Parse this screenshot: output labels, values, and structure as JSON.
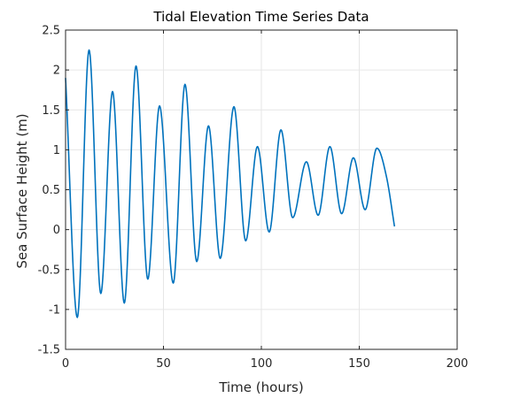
{
  "chart_data": {
    "type": "line",
    "title": "Tidal Elevation Time Series Data",
    "xlabel": "Time (hours)",
    "ylabel": "Sea Surface Height (m)",
    "xlim": [
      0,
      200
    ],
    "ylim": [
      -1.5,
      2.5
    ],
    "xticks": [
      0,
      50,
      100,
      150,
      200
    ],
    "xtick_labels": [
      "0",
      "50",
      "100",
      "150",
      "200"
    ],
    "yticks": [
      -1.5,
      -1,
      -0.5,
      0,
      0.5,
      1,
      1.5,
      2,
      2.5
    ],
    "ytick_labels": [
      "-1.5",
      "-1",
      "-0.5",
      "0",
      "0.5",
      "1",
      "1.5",
      "2",
      "2.5"
    ],
    "grid": true,
    "series": [
      {
        "color": "#0072bd",
        "x": [
          0,
          6,
          12,
          18,
          24,
          30,
          36,
          42,
          48,
          55,
          61,
          67,
          73,
          79,
          86,
          92,
          98,
          104,
          110,
          116,
          123,
          129,
          135,
          141,
          147,
          153,
          159,
          164,
          168
        ],
        "y": [
          1.9,
          -1.1,
          2.25,
          -0.8,
          1.73,
          -0.92,
          2.05,
          -0.62,
          1.55,
          -0.67,
          1.82,
          -0.4,
          1.3,
          -0.36,
          1.54,
          -0.14,
          1.04,
          -0.03,
          1.25,
          0.15,
          0.85,
          0.18,
          1.04,
          0.2,
          0.9,
          0.25,
          1.02,
          0.65,
          0.04
        ]
      }
    ]
  }
}
